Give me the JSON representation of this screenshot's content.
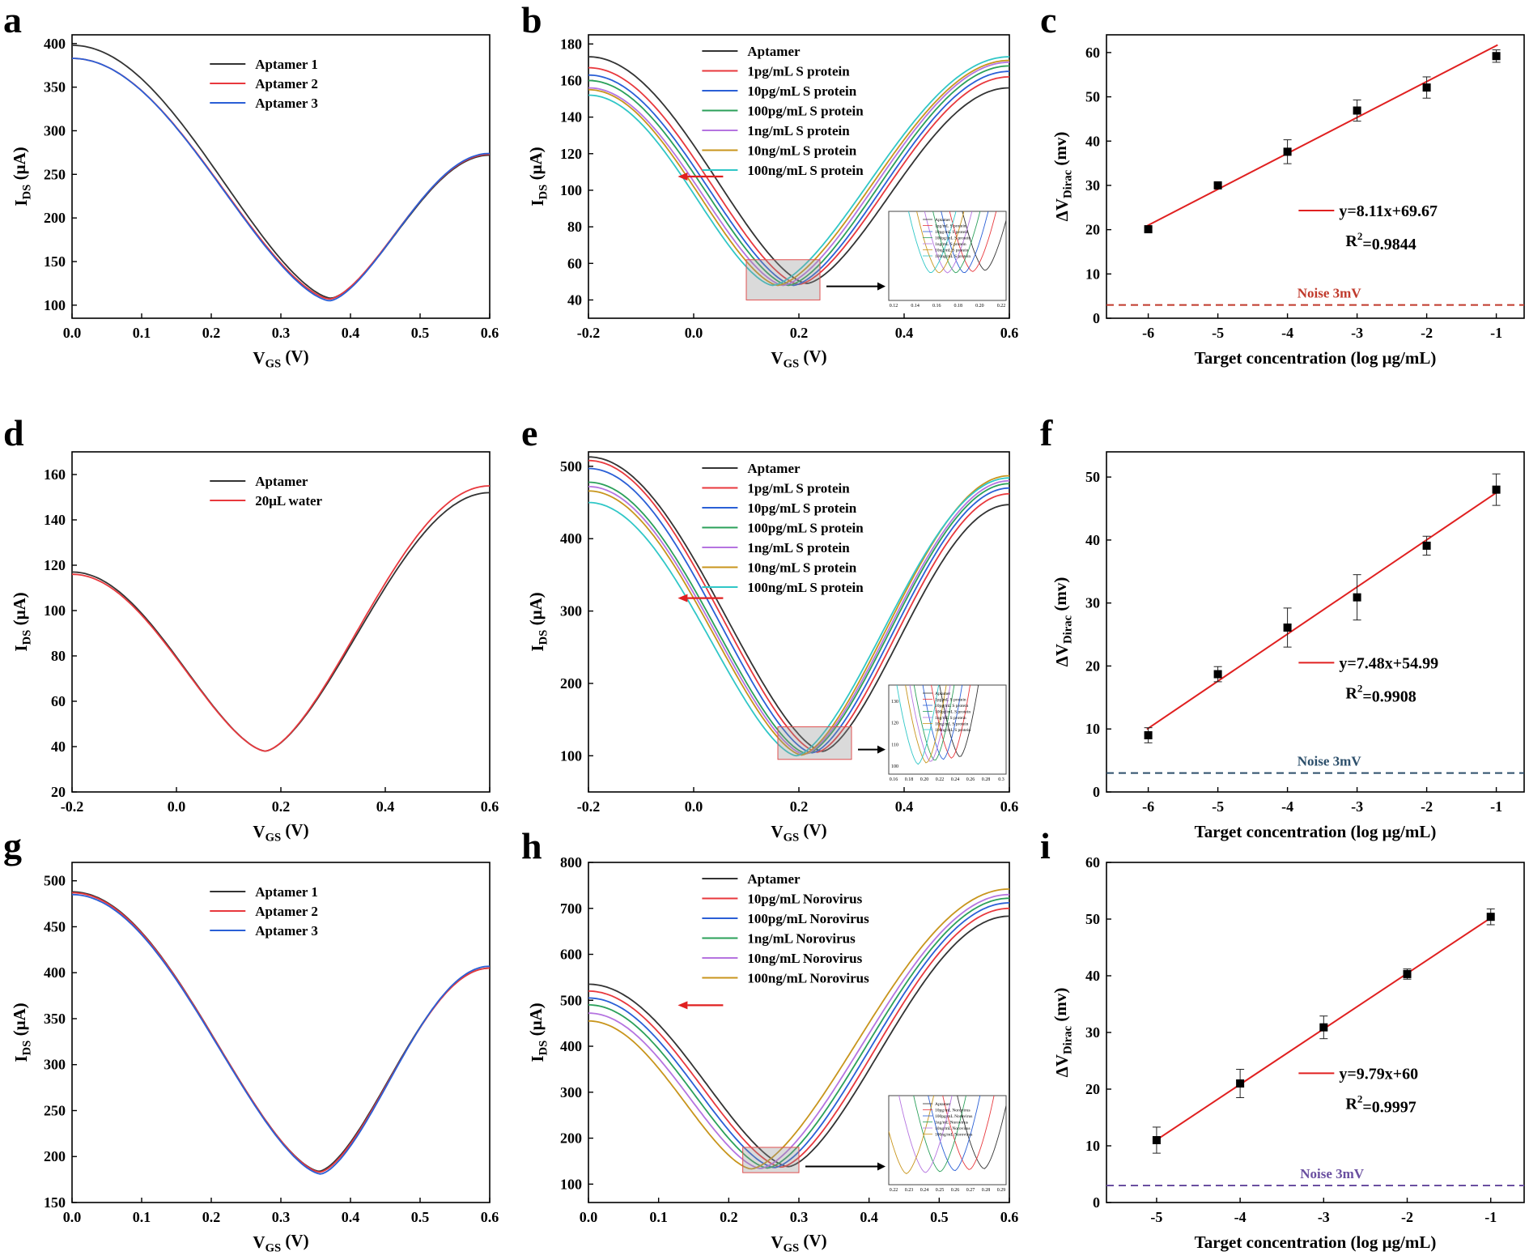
{
  "figure": {
    "panels": [
      {
        "letter": "a"
      },
      {
        "letter": "b"
      },
      {
        "letter": "c"
      },
      {
        "letter": "d"
      },
      {
        "letter": "e"
      },
      {
        "letter": "f"
      },
      {
        "letter": "g"
      },
      {
        "letter": "h"
      },
      {
        "letter": "i"
      }
    ]
  },
  "chart_data": [
    {
      "type": "line",
      "panel": "a",
      "xlabel": "V_GS (V)",
      "ylabel": "I_DS (μA)",
      "xlim": [
        0,
        0.6
      ],
      "ylim": [
        85,
        410
      ],
      "xticks": [
        "0.0",
        "0.1",
        "0.2",
        "0.3",
        "0.4",
        "0.5",
        "0.6"
      ],
      "yticks": [
        "100",
        "150",
        "200",
        "250",
        "300",
        "350",
        "400"
      ],
      "legend_position": "top-center",
      "series": [
        {
          "name": "Aptamer  1",
          "color": "#333333",
          "vdirac": 0.372,
          "imin": 108,
          "i_start": 398,
          "i_end": 272
        },
        {
          "name": "Aptamer  2",
          "color": "#e8383d",
          "vdirac": 0.37,
          "imin": 107,
          "i_start": 383,
          "i_end": 273
        },
        {
          "name": "Aptamer  3",
          "color": "#2a5fd6",
          "vdirac": 0.37,
          "imin": 105,
          "i_start": 383,
          "i_end": 274
        }
      ]
    },
    {
      "type": "line",
      "panel": "b",
      "xlabel": "V_GS (V)",
      "ylabel": "I_DS (μA)",
      "xlim": [
        -0.2,
        0.6
      ],
      "ylim": [
        30,
        185
      ],
      "xticks": [
        "-0.2",
        "0.0",
        "0.2",
        "0.4",
        "0.6"
      ],
      "yticks": [
        "40",
        "60",
        "80",
        "100",
        "120",
        "140",
        "160",
        "180"
      ],
      "legend_position": "top-center",
      "series": [
        {
          "name": "Aptamer",
          "color": "#333333",
          "vdirac": 0.215,
          "imin": 49,
          "i_start": 173,
          "i_end": 156
        },
        {
          "name": "1pg/mL S protein",
          "color": "#e8383d",
          "vdirac": 0.2,
          "imin": 48.5,
          "i_start": 167,
          "i_end": 162
        },
        {
          "name": "10pg/mL S protein",
          "color": "#2a5fd6",
          "vdirac": 0.19,
          "imin": 48,
          "i_start": 163,
          "i_end": 165
        },
        {
          "name": "100pg/mL S protein",
          "color": "#2ba05a",
          "vdirac": 0.18,
          "imin": 48,
          "i_start": 160,
          "i_end": 168
        },
        {
          "name": "1ng/mL S protein",
          "color": "#b574e0",
          "vdirac": 0.17,
          "imin": 48,
          "i_start": 156,
          "i_end": 170
        },
        {
          "name": "10ng/mL S protein",
          "color": "#c8951c",
          "vdirac": 0.16,
          "imin": 48,
          "i_start": 155,
          "i_end": 171
        },
        {
          "name": "100ng/mL S protein",
          "color": "#30c7c7",
          "vdirac": 0.15,
          "imin": 48,
          "i_start": 152,
          "i_end": 173
        }
      ],
      "inset_legend": [
        "Aptamer",
        "1pg/mL S protein",
        "10pg/mL S protein",
        "100pg/mL S protein",
        "1ng/mL S protein",
        "10ng/mL S protein",
        "100ng/mL S protein"
      ],
      "inset_xticks": [
        "0.12",
        "0.14",
        "0.16",
        "0.18",
        "0.20",
        "0.22"
      ],
      "inset_zoom": {
        "xlim": [
          0.1,
          0.24
        ],
        "ylim": [
          40,
          62
        ]
      }
    },
    {
      "type": "scatter",
      "panel": "c",
      "xlabel": "Target concentration (log  μg/mL)",
      "ylabel": "ΔV_Dirac (mv)",
      "xlim": [
        -6.6,
        -0.6
      ],
      "ylim": [
        0,
        64
      ],
      "xticks": [
        "-6",
        "-5",
        "-4",
        "-3",
        "-2",
        "-1"
      ],
      "yticks": [
        "0",
        "10",
        "20",
        "30",
        "40",
        "50",
        "60"
      ],
      "x": [
        -6,
        -5,
        -4,
        -3,
        -2,
        -1
      ],
      "y": [
        20.1,
        30.0,
        37.6,
        46.9,
        52.1,
        59.2
      ],
      "yerr": [
        0.4,
        0.4,
        2.7,
        2.4,
        2.4,
        1.4
      ],
      "fit": {
        "slope": 8.11,
        "intercept": 69.67,
        "x_range": [
          -6,
          -1
        ]
      },
      "equation": "y=8.11x+69.67",
      "r2_label": "R",
      "r2_value": "=0.9844",
      "noise_label": "Noise 3mV",
      "noise_level": 3,
      "noise_color": "#c0392b"
    },
    {
      "type": "line",
      "panel": "d",
      "xlabel": "V_GS (V)",
      "ylabel": "I_DS (μA)",
      "xlim": [
        -0.2,
        0.6
      ],
      "ylim": [
        20,
        170
      ],
      "xticks": [
        "-0.2",
        "0.0",
        "0.2",
        "0.4",
        "0.6"
      ],
      "yticks": [
        "20",
        "40",
        "60",
        "80",
        "100",
        "120",
        "140",
        "160"
      ],
      "legend_position": "top-center",
      "series": [
        {
          "name": "Aptamer",
          "color": "#333333",
          "vdirac": 0.17,
          "imin": 38,
          "i_start": 117,
          "i_end": 152
        },
        {
          "name": "20μL water",
          "color": "#e8383d",
          "vdirac": 0.17,
          "imin": 38,
          "i_start": 116,
          "i_end": 155
        }
      ]
    },
    {
      "type": "line",
      "panel": "e",
      "xlabel": "V_GS (V)",
      "ylabel": "I_DS (μA)",
      "xlim": [
        -0.2,
        0.6
      ],
      "ylim": [
        50,
        520
      ],
      "xticks": [
        "-0.2",
        "0.0",
        "0.2",
        "0.4",
        "0.6"
      ],
      "yticks": [
        "100",
        "200",
        "300",
        "400",
        "500"
      ],
      "legend_position": "top-center",
      "series": [
        {
          "name": "Aptamer",
          "color": "#333333",
          "vdirac": 0.245,
          "imin": 106,
          "i_start": 513,
          "i_end": 447
        },
        {
          "name": "1pg/mL S protein",
          "color": "#e8383d",
          "vdirac": 0.235,
          "imin": 105,
          "i_start": 508,
          "i_end": 462
        },
        {
          "name": "10pg/mL S protein",
          "color": "#2a5fd6",
          "vdirac": 0.225,
          "imin": 104,
          "i_start": 497,
          "i_end": 470
        },
        {
          "name": "100pg/mL S protein",
          "color": "#2ba05a",
          "vdirac": 0.215,
          "imin": 103,
          "i_start": 478,
          "i_end": 476
        },
        {
          "name": "1ng/mL S protein",
          "color": "#b574e0",
          "vdirac": 0.21,
          "imin": 102,
          "i_start": 472,
          "i_end": 480
        },
        {
          "name": "10ng/mL S protein",
          "color": "#c8951c",
          "vdirac": 0.205,
          "imin": 101,
          "i_start": 466,
          "i_end": 487
        },
        {
          "name": "100ng/mL S protein",
          "color": "#30c7c7",
          "vdirac": 0.195,
          "imin": 100,
          "i_start": 450,
          "i_end": 484
        }
      ],
      "inset_legend": [
        "Aptamer",
        "1pg/mL S protein",
        "10pg/mL S protein",
        "100pg/mL S protein",
        "1ng/mL S protein",
        "10ng/mL S protein",
        "100ng/mL S protein"
      ],
      "inset_xticks": [
        "0.16",
        "0.18",
        "0.20",
        "0.22",
        "0.24",
        "0.26",
        "0.28",
        "0.3"
      ],
      "inset_yticks": [
        "100",
        "110",
        "120",
        "130"
      ],
      "inset_zoom": {
        "xlim": [
          0.16,
          0.3
        ],
        "ylim": [
          95,
          140
        ]
      }
    },
    {
      "type": "scatter",
      "panel": "f",
      "xlabel": "Target concentration (log  μg/mL)",
      "ylabel": "ΔV_Dirac (mv)",
      "xlim": [
        -6.6,
        -0.6
      ],
      "ylim": [
        0,
        54
      ],
      "xticks": [
        "-6",
        "-5",
        "-4",
        "-3",
        "-2",
        "-1"
      ],
      "yticks": [
        "0",
        "10",
        "20",
        "30",
        "40",
        "50"
      ],
      "x": [
        -6,
        -5,
        -4,
        -3,
        -2,
        -1
      ],
      "y": [
        9.0,
        18.7,
        26.1,
        30.9,
        39.1,
        48.0
      ],
      "yerr": [
        1.2,
        1.2,
        3.1,
        3.6,
        1.5,
        2.5
      ],
      "fit": {
        "slope": 7.48,
        "intercept": 54.99,
        "x_range": [
          -6,
          -1
        ]
      },
      "equation": "y=7.48x+54.99",
      "r2_label": "R",
      "r2_value": "=0.9908",
      "noise_label": "Noise 3mV",
      "noise_level": 3,
      "noise_color": "#2c4f6b"
    },
    {
      "type": "line",
      "panel": "g",
      "xlabel": "V_GS (V)",
      "ylabel": "I_DS (μA)",
      "xlim": [
        0,
        0.6
      ],
      "ylim": [
        150,
        520
      ],
      "xticks": [
        "0.0",
        "0.1",
        "0.2",
        "0.3",
        "0.4",
        "0.5",
        "0.6"
      ],
      "yticks": [
        "150",
        "200",
        "250",
        "300",
        "350",
        "400",
        "450",
        "500"
      ],
      "legend_position": "top-center",
      "series": [
        {
          "name": "Aptamer  1",
          "color": "#333333",
          "vdirac": 0.355,
          "imin": 184,
          "i_start": 488,
          "i_end": 405
        },
        {
          "name": "Aptamer  2",
          "color": "#e8383d",
          "vdirac": 0.356,
          "imin": 183,
          "i_start": 487,
          "i_end": 405
        },
        {
          "name": "Aptamer  3",
          "color": "#2a5fd6",
          "vdirac": 0.357,
          "imin": 181,
          "i_start": 485,
          "i_end": 407
        }
      ]
    },
    {
      "type": "line",
      "panel": "h",
      "xlabel": "V_GS (V)",
      "ylabel": "I_DS (μA)",
      "xlim": [
        0,
        0.6
      ],
      "ylim": [
        60,
        800
      ],
      "xticks": [
        "0.0",
        "0.1",
        "0.2",
        "0.3",
        "0.4",
        "0.5",
        "0.6"
      ],
      "yticks": [
        "100",
        "200",
        "300",
        "400",
        "500",
        "600",
        "700",
        "800"
      ],
      "legend_position": "top-center",
      "series": [
        {
          "name": "Aptamer",
          "color": "#333333",
          "vdirac": 0.285,
          "imin": 138,
          "i_start": 535,
          "i_end": 683
        },
        {
          "name": "10pg/mL Norovirus",
          "color": "#e8383d",
          "vdirac": 0.275,
          "imin": 137,
          "i_start": 520,
          "i_end": 700
        },
        {
          "name": "100pg/mL Norovirus",
          "color": "#2a5fd6",
          "vdirac": 0.265,
          "imin": 136,
          "i_start": 505,
          "i_end": 712
        },
        {
          "name": "1ng/mL Norovirus",
          "color": "#2ba05a",
          "vdirac": 0.255,
          "imin": 135,
          "i_start": 490,
          "i_end": 722
        },
        {
          "name": "10ng/mL Norovirus",
          "color": "#b574e0",
          "vdirac": 0.245,
          "imin": 134,
          "i_start": 472,
          "i_end": 730
        },
        {
          "name": "100ng/mL Norovirus",
          "color": "#c8951c",
          "vdirac": 0.232,
          "imin": 133,
          "i_start": 455,
          "i_end": 742
        }
      ],
      "inset_legend": [
        "Aptamer",
        "10pg/mL Norovirus",
        "100pg/mL Norovirus",
        "1ng/mL Norovirus",
        "10ng/mL Norovirus",
        "100ng/mL Norovirus"
      ],
      "inset_xticks": [
        "0.22",
        "0.23",
        "0.24",
        "0.25",
        "0.26",
        "0.27",
        "0.28",
        "0.29"
      ],
      "inset_zoom": {
        "xlim": [
          0.22,
          0.3
        ],
        "ylim": [
          125,
          180
        ]
      }
    },
    {
      "type": "scatter",
      "panel": "i",
      "xlabel": "Target concentration (log  μg/mL)",
      "ylabel": "ΔV_Dirac (mv)",
      "xlim": [
        -5.6,
        -0.6
      ],
      "ylim": [
        0,
        60
      ],
      "xticks": [
        "-5",
        "-4",
        "-3",
        "-2",
        "-1"
      ],
      "yticks": [
        "0",
        "10",
        "20",
        "30",
        "40",
        "50",
        "60"
      ],
      "x": [
        -5,
        -4,
        -3,
        -2,
        -1
      ],
      "y": [
        11.0,
        21.0,
        30.9,
        40.3,
        50.4
      ],
      "yerr": [
        2.3,
        2.5,
        2.0,
        0.9,
        1.4
      ],
      "fit": {
        "slope": 9.79,
        "intercept": 60,
        "x_range": [
          -5,
          -1
        ]
      },
      "equation": "y=9.79x+60",
      "r2_label": "R",
      "r2_value": "=0.9997",
      "noise_label": "Noise 3mV",
      "noise_level": 3,
      "noise_color": "#6a4fa0"
    }
  ]
}
